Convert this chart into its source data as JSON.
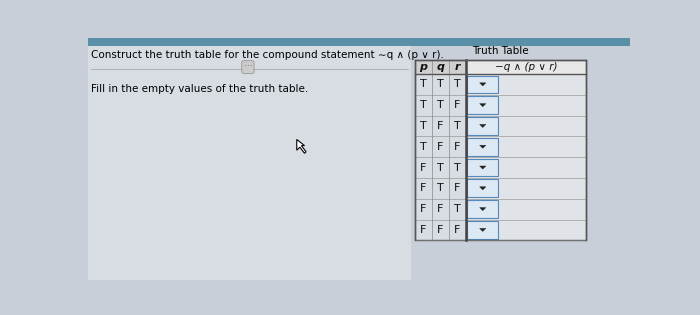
{
  "title_text": "Construct the truth table for the compound statement ∼q ∧ (p ∨ r).",
  "table_title": "Truth Table",
  "col_headers": [
    "p",
    "q",
    "r",
    "−q ∧ (p ∨ r)"
  ],
  "rows": [
    [
      "T",
      "T",
      "T"
    ],
    [
      "T",
      "T",
      "F"
    ],
    [
      "T",
      "F",
      "T"
    ],
    [
      "T",
      "F",
      "F"
    ],
    [
      "F",
      "T",
      "T"
    ],
    [
      "F",
      "T",
      "F"
    ],
    [
      "F",
      "F",
      "T"
    ],
    [
      "F",
      "F",
      "F"
    ]
  ],
  "instruction": "Fill in the empty values of the truth table.",
  "bg_color": "#c8cfd8",
  "table_bg": "#e8e8e8",
  "header_bg": "#c8c8c8",
  "dropdown_col_bg": "#dce8f4",
  "dropdown_border": "#5588bb",
  "text_color": "#111111",
  "title_color": "#000000"
}
